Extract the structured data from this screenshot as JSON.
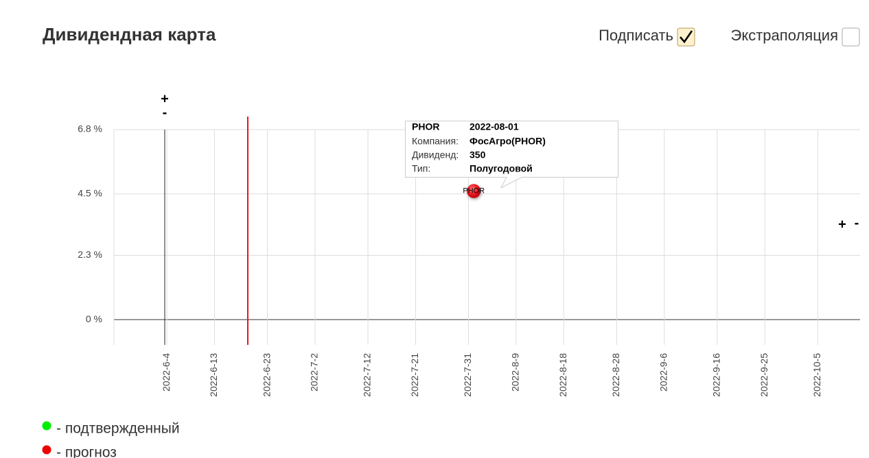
{
  "header": {
    "title": "Дивидендная карта",
    "options": [
      {
        "label": "Подписать",
        "checked": true
      },
      {
        "label": "Экстраполяция",
        "checked": false
      }
    ]
  },
  "chart_data": {
    "type": "scatter",
    "x": [
      "2022-08-01"
    ],
    "series": [
      {
        "name": "PHOR",
        "color": "#e8141b",
        "values": [
          4.6
        ]
      }
    ],
    "xlim": [
      "2022-5-25",
      "2022-10-13"
    ],
    "xticks": [
      "2022-6-4",
      "2022-6-13",
      "2022-6-23",
      "2022-7-2",
      "2022-7-12",
      "2022-7-21",
      "2022-7-31",
      "2022-8-9",
      "2022-8-18",
      "2022-8-28",
      "2022-9-6",
      "2022-9-16",
      "2022-9-25",
      "2022-10-5"
    ],
    "ylim": [
      -0.9,
      6.8
    ],
    "yticks": [
      {
        "value": 0,
        "label": "0 %"
      },
      {
        "value": 2.3,
        "label": "2.3 %"
      },
      {
        "value": 4.5,
        "label": "4.5 %"
      },
      {
        "value": 6.8,
        "label": "6.8 %"
      }
    ],
    "grid": true,
    "tooltip": {
      "rows": [
        [
          "Компания:",
          "ФосАгро(PHOR)"
        ],
        [
          "Дивиденд:",
          350
        ],
        [
          "Тип:",
          "Полугодовой"
        ]
      ]
    }
  },
  "controls": {
    "left": [
      "+",
      "-"
    ],
    "right": [
      "+",
      "-"
    ]
  },
  "legend": [
    {
      "label": "- подтвержденный",
      "color": "#00ee00"
    },
    {
      "label": "- прогноз",
      "color": "#ee0000"
    }
  ]
}
